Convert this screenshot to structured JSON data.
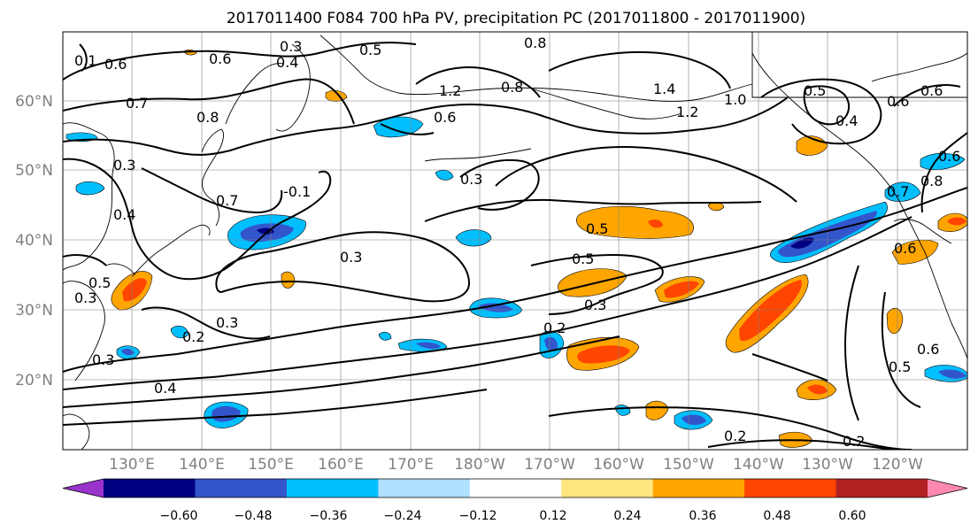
{
  "title": "2017011400 F084 700 hPa PV, precipitation PC (2017011800 - 2017011900)",
  "lat_labels": [
    "60°N",
    "50°N",
    "40°N",
    "30°N",
    "20°N"
  ],
  "lon_labels": [
    "130°E",
    "140°E",
    "150°E",
    "160°E",
    "170°E",
    "180°W",
    "170°W",
    "160°W",
    "150°W",
    "140°W",
    "130°W",
    "120°W"
  ],
  "colorbar": {
    "colors": [
      "#9933cc",
      "#000080",
      "#3355cc",
      "#00bfff",
      "#b0e0ff",
      "#ffffff",
      "#ffe680",
      "#ffa500",
      "#ff4500",
      "#b22222",
      "#ff88b0"
    ],
    "ticks": [
      "−0.60",
      "−0.48",
      "−0.36",
      "−0.24",
      "−0.12",
      "0.12",
      "0.24",
      "0.36",
      "0.48",
      "0.60"
    ]
  },
  "contour_labels": [
    "0.3",
    "0.4",
    "0.6",
    "0.6",
    "0.5",
    "0.8",
    "0.8",
    "1.2",
    "0.6",
    "0.7",
    "0.8",
    "1.4",
    "1.2",
    "1.0",
    "0.5",
    "0.4",
    "0.6",
    "0.6",
    "0.3",
    "0.3",
    "0.4",
    "0.7",
    "-0.1",
    "0.3",
    "0.5",
    "0.5",
    "0.7",
    "0.6",
    "0.8",
    "0.6",
    "0.3",
    "0.5",
    "0.3",
    "0.3",
    "0.2",
    "0.2",
    "0.3",
    "0.4",
    "0.2",
    "0.2",
    "0.6",
    "0.5",
    "0.1"
  ],
  "colors": {
    "contour": "#000000",
    "grid": "#808080",
    "coast": "#000000"
  }
}
